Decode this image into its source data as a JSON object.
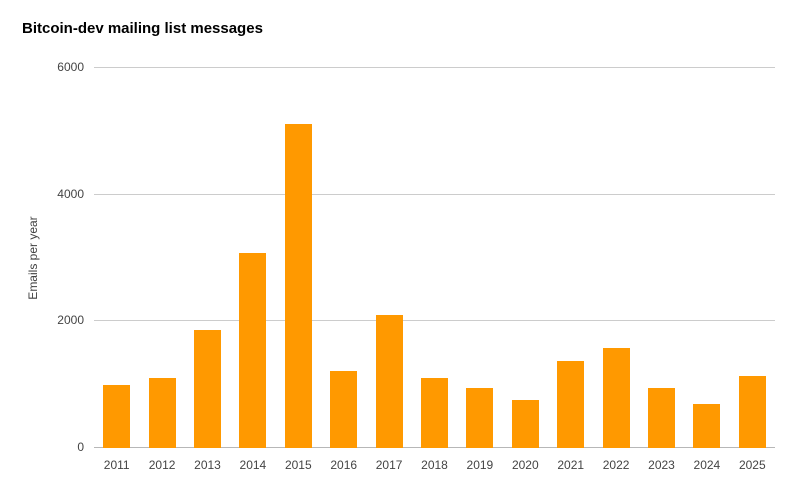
{
  "chart_data": {
    "type": "bar",
    "title": "Bitcoin-dev mailing list messages",
    "xlabel": "",
    "ylabel": "Emails per year",
    "categories": [
      "2011",
      "2012",
      "2013",
      "2014",
      "2015",
      "2016",
      "2017",
      "2018",
      "2019",
      "2020",
      "2021",
      "2022",
      "2023",
      "2024",
      "2025"
    ],
    "values": [
      1000,
      1100,
      1870,
      3080,
      5110,
      1210,
      2100,
      1100,
      940,
      760,
      1380,
      1580,
      940,
      700,
      1130
    ],
    "ylim": [
      0,
      6000
    ],
    "yticks": [
      0,
      2000,
      4000,
      6000
    ],
    "grid": true,
    "legend": "none",
    "bar_color": "#FF9900",
    "background_color": "#ffffff"
  }
}
